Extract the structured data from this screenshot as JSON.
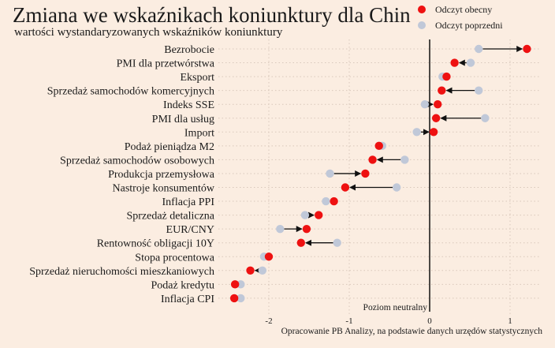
{
  "chart_data": {
    "type": "dumbbell",
    "title": "Zmiana we wskaźnikach koniunktury dla Chin",
    "subtitle": "wartości wystandaryzowanych wskaźników koniunktury",
    "xlabel": "",
    "ylabel": "",
    "xlim": [
      -2.65,
      1.38
    ],
    "xticks": [
      -2,
      -1,
      0,
      1
    ],
    "xtick_labels": [
      "-2",
      "-1",
      "0",
      "1"
    ],
    "grid": true,
    "legend_position": "top-right",
    "legend": [
      {
        "name": "Odczyt obecny",
        "color": "#ee1111"
      },
      {
        "name": "Odczyt poprzedni",
        "color": "#c0c8d8"
      }
    ],
    "zero_line_label": "Poziom neutralny",
    "source": "Opracowanie PB Analizy, na podstawie danych urzędów statystycznych",
    "categories": [
      "Bezrobocie",
      "PMI dla przetwórstwa",
      "Eksport",
      "Sprzedaż samochodów komercyjnych",
      "Indeks SSE",
      "PMI dla usług",
      "Import",
      "Podaż pieniądza M2",
      "Sprzedaż samochodów osobowych",
      "Produkcja przemysłowa",
      "Nastroje konsumentów",
      "Inflacja PPI",
      "Sprzedaż detaliczna",
      "EUR/CNY",
      "Rentowność obligacji 10Y",
      "Stopa procentowa",
      "Sprzedaż nieruchomości mieszkaniowych",
      "Podaż kredytu",
      "Inflacja CPI"
    ],
    "series": [
      {
        "name": "Odczyt obecny",
        "color": "#ee1111",
        "values": [
          1.21,
          0.31,
          0.21,
          0.15,
          0.1,
          0.08,
          0.05,
          -0.63,
          -0.71,
          -0.8,
          -1.05,
          -1.19,
          -1.38,
          -1.53,
          -1.6,
          -2.0,
          -2.23,
          -2.42,
          -2.43
        ]
      },
      {
        "name": "Odczyt poprzedni",
        "color": "#c0c8d8",
        "values": [
          0.61,
          0.51,
          0.16,
          0.61,
          -0.06,
          0.69,
          -0.16,
          -0.59,
          -0.31,
          -1.24,
          -0.41,
          -1.29,
          -1.55,
          -1.86,
          -1.15,
          -2.06,
          -2.08,
          -2.35,
          -2.35
        ]
      }
    ]
  }
}
